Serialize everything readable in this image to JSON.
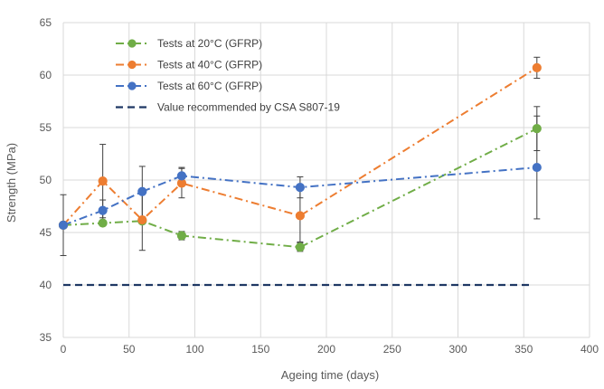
{
  "chart_data": {
    "type": "line",
    "title": "",
    "xlabel": "Ageing time (days)",
    "ylabel": "Strength (MPa)",
    "xlim": [
      0,
      400
    ],
    "ylim": [
      35,
      65
    ],
    "xticks": [
      0,
      50,
      100,
      150,
      200,
      250,
      300,
      350,
      400
    ],
    "yticks": [
      35,
      40,
      45,
      50,
      55,
      60,
      65
    ],
    "grid": true,
    "legend_position": "top-left inside",
    "series": [
      {
        "name": "Tests at 20°C (GFRP)",
        "color": "#70ad47",
        "line_style": "dash-dot",
        "marker": "circle",
        "x": [
          0,
          30,
          60,
          90,
          180,
          360
        ],
        "y": [
          45.7,
          45.9,
          46.1,
          44.7,
          43.6,
          54.9
        ],
        "err": [
          null,
          null,
          null,
          0.4,
          0.4,
          2.1
        ]
      },
      {
        "name": "Tests at 40°C (GFRP)",
        "color": "#ed7d31",
        "line_style": "dash-dot",
        "marker": "circle",
        "x": [
          0,
          30,
          60,
          90,
          180,
          360
        ],
        "y": [
          45.7,
          49.9,
          46.2,
          49.7,
          46.6,
          60.7
        ],
        "err": [
          null,
          3.5,
          2.9,
          1.4,
          2.5,
          1.0
        ]
      },
      {
        "name": "Tests at 60°C (GFRP)",
        "color": "#4472c4",
        "line_style": "dash-dot",
        "marker": "circle",
        "x": [
          0,
          30,
          60,
          90,
          180,
          360
        ],
        "y": [
          45.7,
          47.1,
          48.9,
          50.4,
          49.3,
          51.2
        ],
        "err": [
          2.9,
          1.0,
          2.4,
          0.8,
          1.0,
          4.9
        ]
      },
      {
        "name": "Value recommended by CSA S807-19",
        "color": "#1f3864",
        "line_style": "dashed",
        "marker": "none",
        "x": [
          0,
          355
        ],
        "y": [
          40,
          40
        ]
      }
    ]
  }
}
